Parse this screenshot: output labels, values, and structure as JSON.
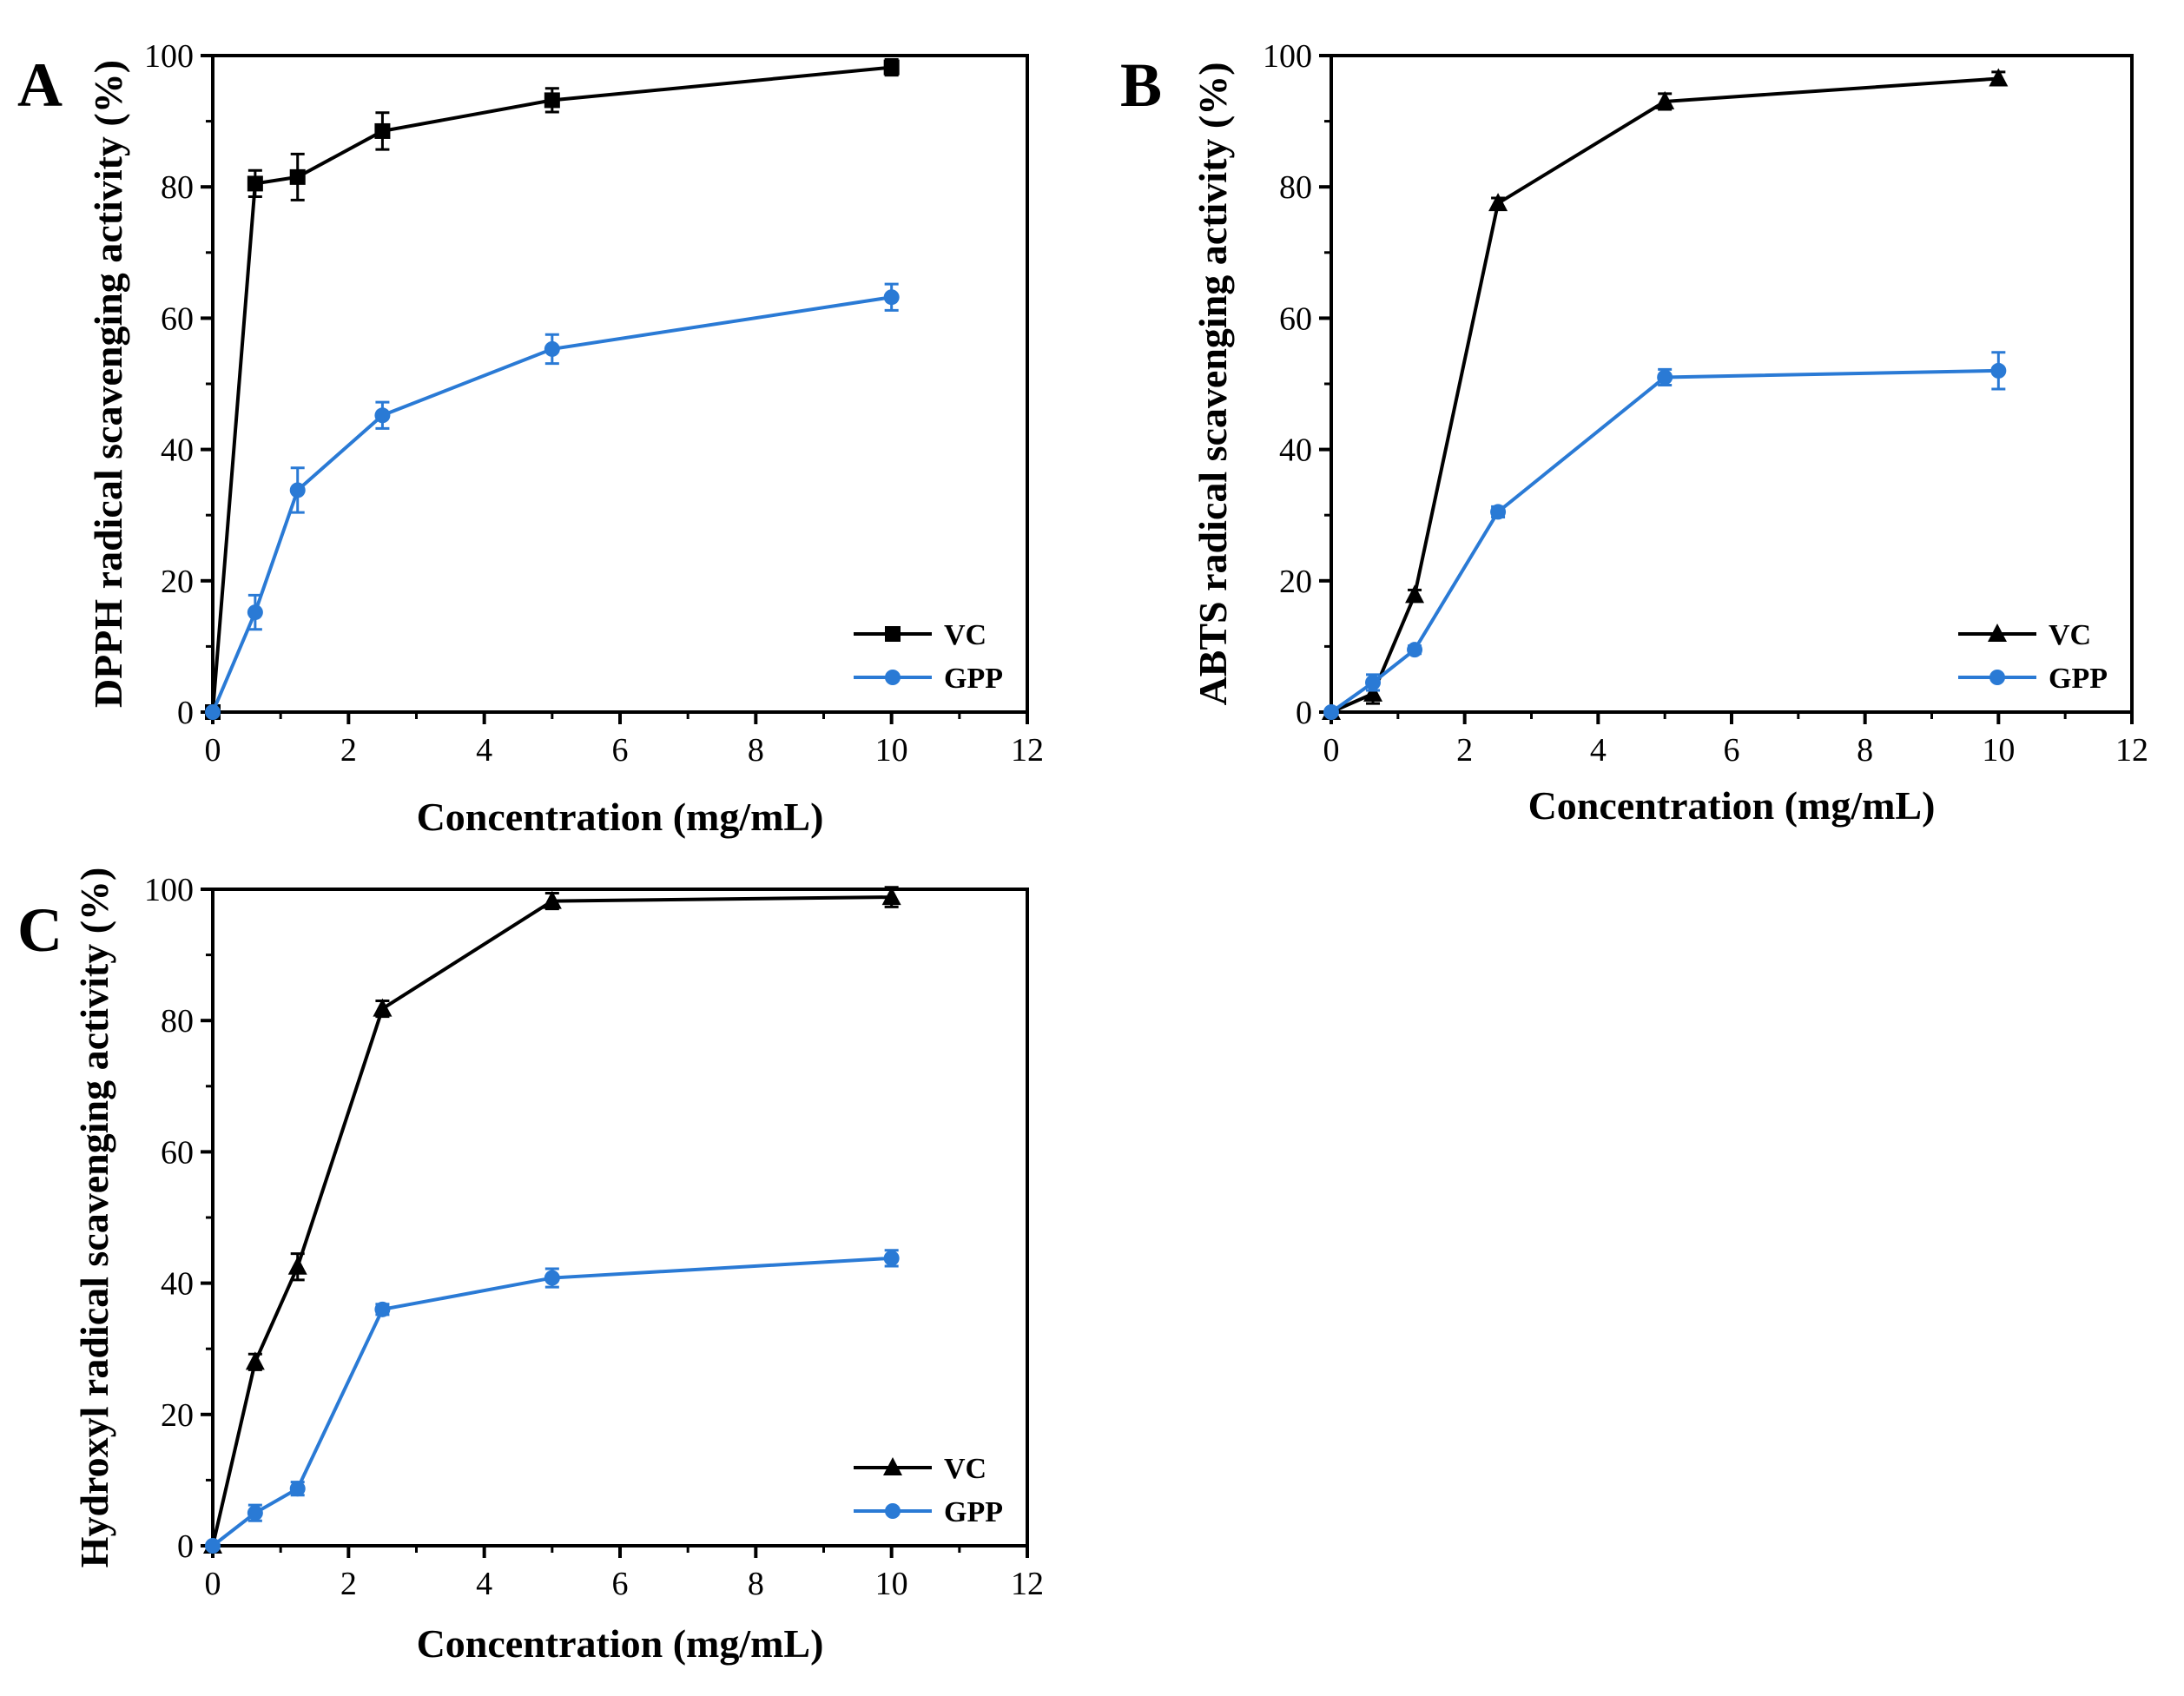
{
  "chart_data": [
    {
      "type": "line",
      "panel": "A",
      "xlabel": "Concentration (mg/mL)",
      "ylabel": "DPPH radical scavenging activity (%)",
      "xlim": [
        0,
        12
      ],
      "ylim": [
        0,
        100
      ],
      "xticks": [
        0,
        2,
        4,
        6,
        8,
        10,
        12
      ],
      "yticks": [
        0,
        20,
        40,
        60,
        80,
        100
      ],
      "grid": false,
      "legend_position": "bottom-right",
      "x": [
        0,
        0.625,
        1.25,
        2.5,
        5,
        10
      ],
      "series": [
        {
          "name": "VC",
          "color": "#000000",
          "marker": "square",
          "values": [
            0,
            80.5,
            81.5,
            88.5,
            93.2,
            98.2
          ],
          "errors": [
            0,
            2.0,
            3.5,
            2.8,
            1.8,
            1.2
          ]
        },
        {
          "name": "GPP",
          "color": "#2a7ad5",
          "marker": "circle",
          "values": [
            0,
            15.2,
            33.8,
            45.2,
            55.3,
            63.2
          ],
          "errors": [
            0,
            2.6,
            3.4,
            2.0,
            2.2,
            2.0
          ]
        }
      ]
    },
    {
      "type": "line",
      "panel": "B",
      "xlabel": "Concentration (mg/mL)",
      "ylabel": "ABTS radical scavenging activity (%)",
      "xlim": [
        0,
        12
      ],
      "ylim": [
        0,
        100
      ],
      "xticks": [
        0,
        2,
        4,
        6,
        8,
        10,
        12
      ],
      "yticks": [
        0,
        20,
        40,
        60,
        80,
        100
      ],
      "grid": false,
      "legend_position": "bottom-right",
      "x": [
        0,
        0.625,
        1.25,
        2.5,
        5,
        10
      ],
      "series": [
        {
          "name": "VC",
          "color": "#000000",
          "marker": "triangle",
          "values": [
            0,
            2.8,
            17.8,
            77.5,
            93.0,
            96.5
          ],
          "errors": [
            0,
            1.5,
            0.8,
            0.8,
            1.2,
            1.0
          ]
        },
        {
          "name": "GPP",
          "color": "#2a7ad5",
          "marker": "circle",
          "values": [
            0,
            4.5,
            9.5,
            30.5,
            51.0,
            52.0
          ],
          "errors": [
            0,
            1.2,
            0.6,
            0.8,
            1.2,
            2.8
          ]
        }
      ]
    },
    {
      "type": "line",
      "panel": "C",
      "xlabel": "Concentration (mg/mL)",
      "ylabel": "Hydroxyl radical scavenging activity (%)",
      "xlim": [
        0,
        12
      ],
      "ylim": [
        0,
        100
      ],
      "xticks": [
        0,
        2,
        4,
        6,
        8,
        10,
        12
      ],
      "yticks": [
        0,
        20,
        40,
        60,
        80,
        100
      ],
      "grid": false,
      "legend_position": "bottom-right",
      "x": [
        0,
        0.625,
        1.25,
        2.5,
        5,
        10
      ],
      "series": [
        {
          "name": "VC",
          "color": "#000000",
          "marker": "triangle",
          "values": [
            0,
            28.0,
            42.5,
            81.8,
            98.2,
            98.8
          ],
          "errors": [
            0,
            1.2,
            2.0,
            1.2,
            1.2,
            1.5
          ]
        },
        {
          "name": "GPP",
          "color": "#2a7ad5",
          "marker": "circle",
          "values": [
            0,
            5.0,
            8.7,
            36.0,
            40.8,
            43.8
          ],
          "errors": [
            0,
            1.2,
            1.0,
            0.8,
            1.4,
            1.2
          ]
        }
      ]
    }
  ]
}
